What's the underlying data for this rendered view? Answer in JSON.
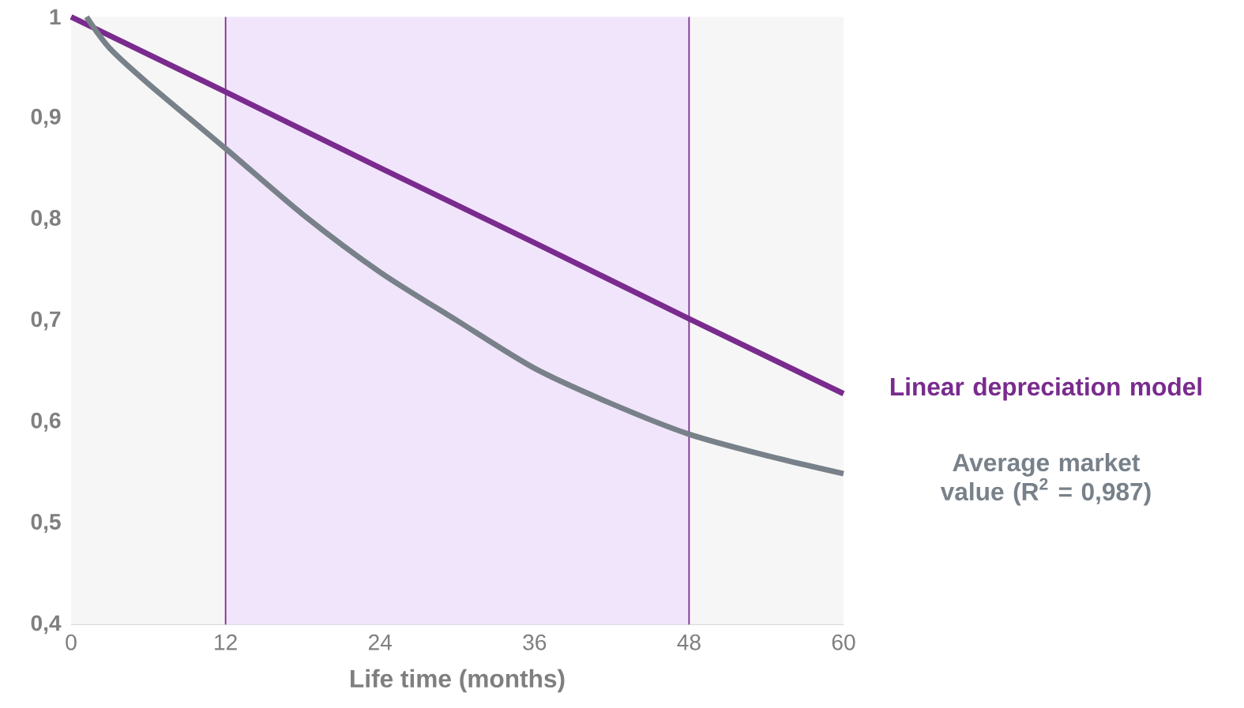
{
  "chart_data": {
    "type": "line",
    "xlabel": "Life time (months)",
    "xlim": [
      0,
      60
    ],
    "ylim": [
      0.4,
      1
    ],
    "xticks": [
      0,
      12,
      24,
      36,
      48,
      60
    ],
    "yticks": [
      {
        "value": 0.4,
        "label": "0,4"
      },
      {
        "value": 0.5,
        "label": "0,5"
      },
      {
        "value": 0.6,
        "label": "0,6"
      },
      {
        "value": 0.7,
        "label": "0,7"
      },
      {
        "value": 0.8,
        "label": "0,8"
      },
      {
        "value": 0.9,
        "label": "0,9"
      },
      1
    ],
    "bands": [
      {
        "axis": "x",
        "from": 12,
        "to": 48,
        "color": "#f1e5fb"
      }
    ],
    "series": [
      {
        "name": "Linear depreciation model",
        "color": "#7a2b8e",
        "x": [
          0,
          12,
          24,
          36,
          48,
          60
        ],
        "values": [
          1,
          0.926,
          0.851,
          0.777,
          0.702,
          0.628
        ]
      },
      {
        "name": "Average market value (R$^{2}$ = 0,987)",
        "color": "#78818a",
        "x": [
          1.2,
          3,
          6,
          12,
          18,
          24,
          30,
          36,
          42,
          48,
          54,
          60
        ],
        "values": [
          1,
          0.969,
          0.934,
          0.87,
          0.805,
          0.748,
          0.7,
          0.653,
          0.618,
          0.588,
          0.567,
          0.549
        ]
      }
    ]
  }
}
